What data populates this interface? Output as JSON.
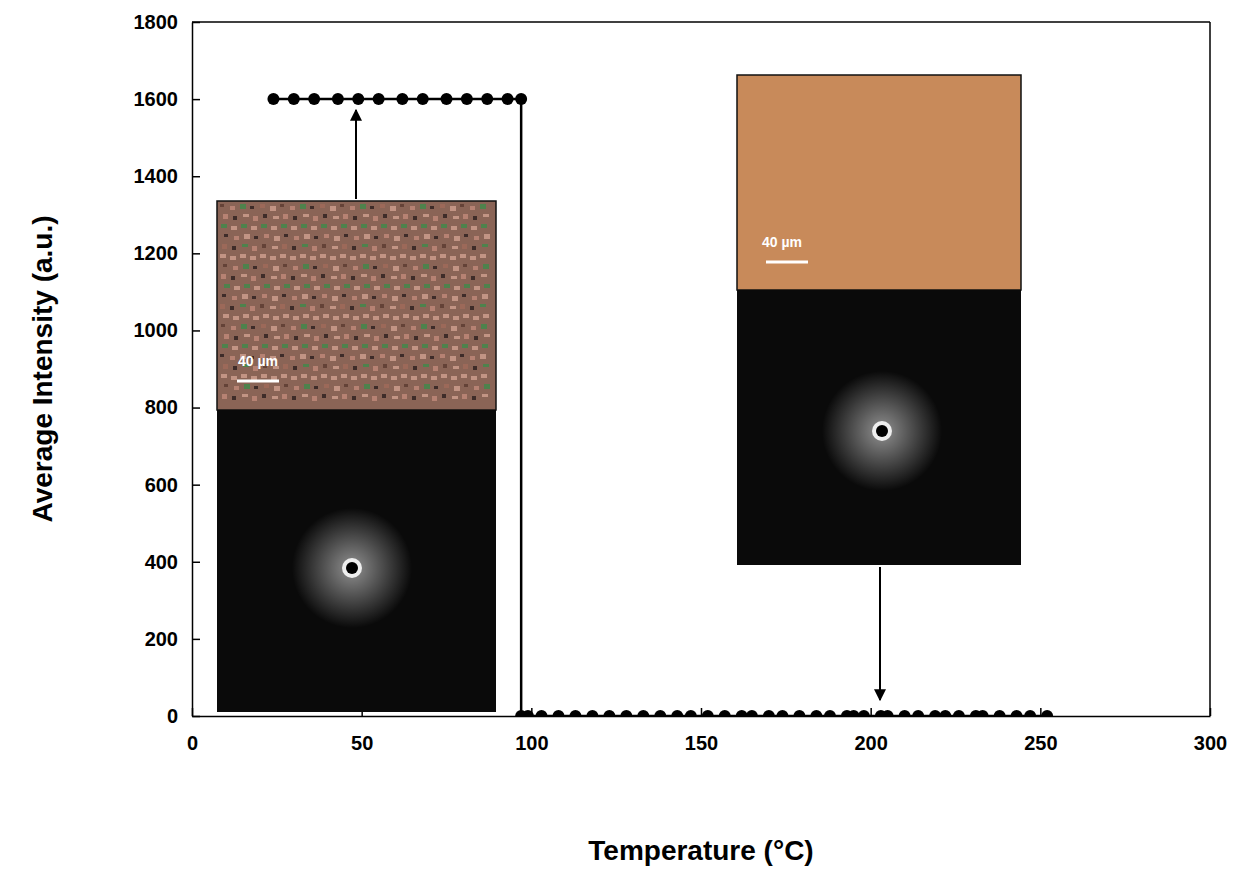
{
  "chart_data": {
    "type": "line",
    "x_label": "Temperature (°C)",
    "y_label": "Average Intensity (a.u.)",
    "x": [
      24,
      30,
      36,
      43,
      49,
      55,
      62,
      68,
      75,
      81,
      87,
      93,
      97,
      97,
      99,
      103,
      108,
      113,
      118,
      123,
      128,
      133,
      138,
      143,
      147,
      152,
      157,
      162,
      165,
      170,
      174,
      179,
      184,
      188,
      193,
      195,
      198,
      203,
      205,
      210,
      214,
      219,
      222,
      226,
      231,
      233,
      238,
      243,
      247,
      252
    ],
    "values": [
      1600,
      1600,
      1600,
      1600,
      1600,
      1600,
      1600,
      1600,
      1600,
      1600,
      1600,
      1600,
      1600,
      0,
      0,
      0,
      0,
      0,
      0,
      0,
      0,
      0,
      0,
      0,
      0,
      0,
      0,
      0,
      0,
      0,
      0,
      0,
      0,
      0,
      0,
      0,
      0,
      0,
      0,
      0,
      0,
      0,
      0,
      0,
      0,
      0,
      0,
      0,
      0,
      0
    ],
    "color": "#000000",
    "marker": "circle",
    "line_style": "solid",
    "xlim": [
      0,
      300
    ],
    "xticks": [
      0,
      50,
      100,
      150,
      200,
      250,
      300
    ],
    "ylim": [
      0,
      1800
    ],
    "yticks": [
      0,
      200,
      400,
      600,
      800,
      1000,
      1200,
      1400,
      1600,
      1800
    ],
    "grid": false,
    "annotations": [
      "40 µm",
      "40 µm"
    ]
  }
}
